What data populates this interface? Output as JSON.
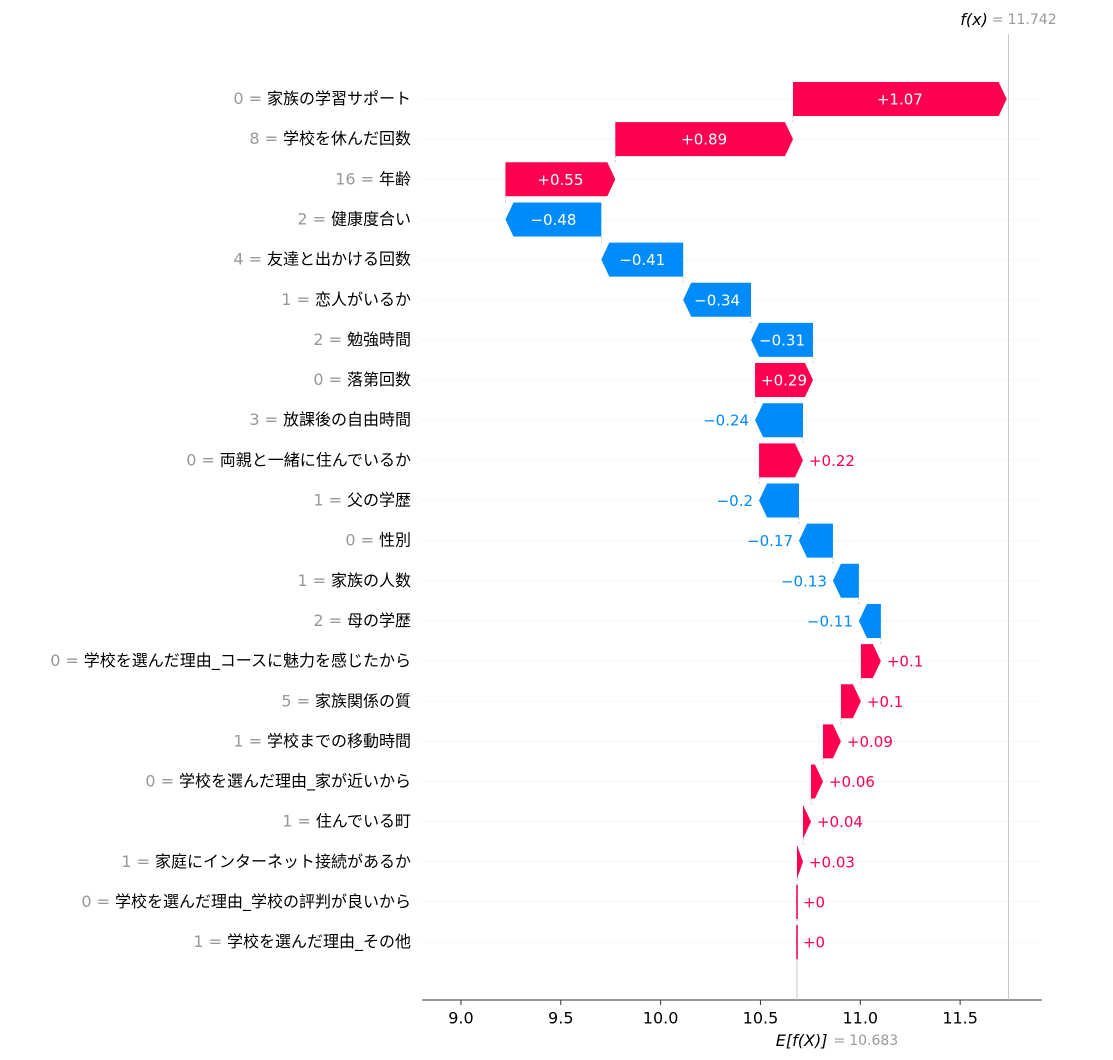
{
  "chart_data": {
    "type": "waterfall",
    "fx_label": "f(x)",
    "fx_value": 11.742,
    "base_label": "E[f(X)]",
    "base_value": 10.683,
    "label_separator": "=",
    "feature_values": [
      0,
      8,
      16,
      2,
      4,
      1,
      2,
      0,
      3,
      0,
      1,
      0,
      1,
      2,
      0,
      5,
      1,
      0,
      1,
      1,
      0,
      1
    ],
    "features": [
      "家族の学習サポート",
      "学校を休んだ回数",
      "年齢",
      "健康度合い",
      "友達と出かける回数",
      "恋人がいるか",
      "勉強時間",
      "落第回数",
      "放課後の自由時間",
      "両親と一緒に住んでいるか",
      "父の学歴",
      "性別",
      "家族の人数",
      "母の学歴",
      "学校を選んだ理由_コースに魅力を感じたから",
      "家族関係の質",
      "学校までの移動時間",
      "学校を選んだ理由_家が近いから",
      "住んでいる町",
      "家庭にインターネット接続があるか",
      "学校を選んだ理由_学校の評判が良いから",
      "学校を選んだ理由_その他"
    ],
    "values": [
      1.07,
      0.89,
      0.55,
      -0.48,
      -0.41,
      -0.34,
      -0.31,
      0.29,
      -0.24,
      0.22,
      -0.2,
      -0.17,
      -0.13,
      -0.11,
      0.1,
      0.1,
      0.09,
      0.06,
      0.04,
      0.03,
      0,
      0
    ],
    "value_labels": [
      "+1.07",
      "+0.89",
      "+0.55",
      "−0.48",
      "−0.41",
      "−0.34",
      "−0.31",
      "+0.29",
      "−0.24",
      "+0.22",
      "−0.2",
      "−0.17",
      "−0.13",
      "−0.11",
      "+0.1",
      "+0.1",
      "+0.09",
      "+0.06",
      "+0.04",
      "+0.03",
      "+0",
      "+0"
    ],
    "positive_color": "#ff0051",
    "negative_color": "#008bfb",
    "xlim": [
      8.805,
      11.91
    ],
    "xticks": [
      {
        "value": 9,
        "label": "9.0"
      },
      {
        "value": 9.5,
        "label": "9.5"
      },
      {
        "value": 10,
        "label": "10.0"
      },
      {
        "value": 10.5,
        "label": "10.5"
      },
      {
        "value": 11,
        "label": "11.0"
      },
      {
        "value": 11.5,
        "label": "11.5"
      }
    ]
  }
}
